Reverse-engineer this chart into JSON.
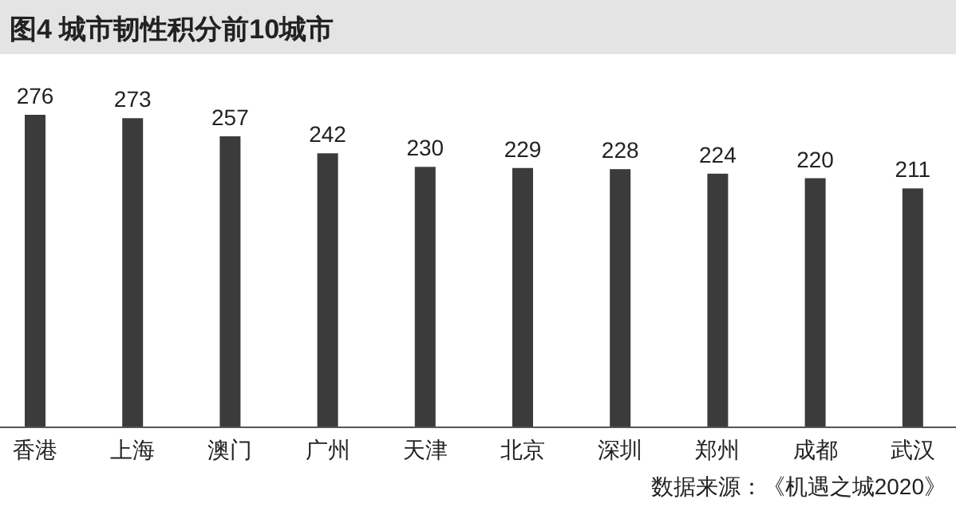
{
  "chart_data": {
    "type": "bar",
    "title": "图4 城市韧性积分前10城市",
    "categories": [
      "香港",
      "上海",
      "澳门",
      "广州",
      "天津",
      "北京",
      "深圳",
      "郑州",
      "成都",
      "武汉"
    ],
    "values": [
      276,
      273,
      257,
      242,
      230,
      229,
      228,
      224,
      220,
      211
    ],
    "color": "#3b3b3b",
    "data_labels": true,
    "annotations": [
      "数据来源：《机遇之城2020》"
    ]
  }
}
